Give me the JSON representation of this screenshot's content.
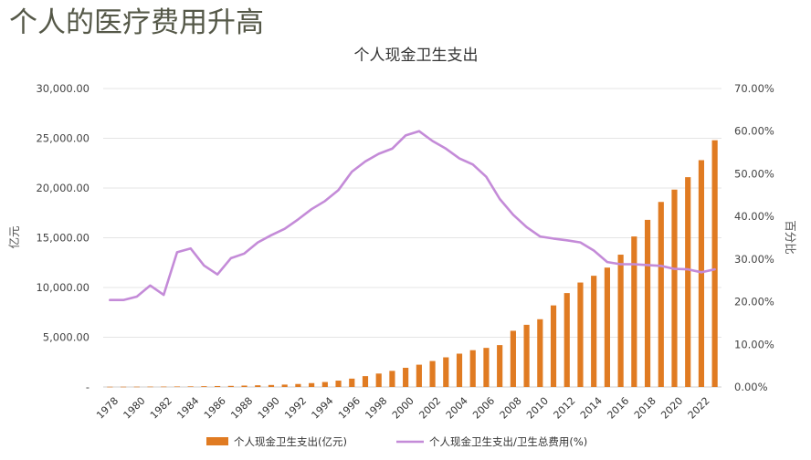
{
  "page": {
    "title": "个人的医疗费用升高"
  },
  "chart_data": {
    "type": "bar",
    "title": "个人现金卫生支出",
    "y_left_label": "亿元",
    "y_right_label": "百分比",
    "y_left_ticks": [
      "-",
      "5,000.00",
      "10,000.00",
      "15,000.00",
      "20,000.00",
      "25,000.00",
      "30,000.00"
    ],
    "y_right_ticks": [
      "0.00%",
      "10.00%",
      "20.00%",
      "30.00%",
      "40.00%",
      "50.00%",
      "60.00%",
      "70.00%"
    ],
    "y_left_lim": [
      0,
      30000
    ],
    "y_right_lim": [
      0,
      70
    ],
    "x_tick_labels": [
      "1978",
      "1980",
      "1982",
      "1984",
      "1986",
      "1988",
      "1990",
      "1992",
      "1994",
      "1996",
      "1998",
      "2000",
      "2002",
      "2004",
      "2006",
      "2008",
      "2010",
      "2012",
      "2014",
      "2016",
      "2018",
      "2020",
      "2022"
    ],
    "grid": true,
    "legend_position": "bottom",
    "x": [
      1978,
      1979,
      1980,
      1981,
      1982,
      1983,
      1984,
      1985,
      1986,
      1987,
      1988,
      1989,
      1990,
      1991,
      1992,
      1993,
      1994,
      1995,
      1996,
      1997,
      1998,
      1999,
      2000,
      2001,
      2002,
      2003,
      2004,
      2005,
      2006,
      2007,
      2008,
      2009,
      2010,
      2011,
      2012,
      2013,
      2014,
      2015,
      2016,
      2017,
      2018,
      2019,
      2020,
      2021,
      2022,
      2023
    ],
    "series": [
      {
        "name": "个人现金卫生支出(亿元)",
        "type": "bar",
        "axis": "left",
        "color": "#E07B22",
        "values": [
          23,
          26,
          30,
          36,
          40,
          50,
          60,
          80,
          95,
          110,
          140,
          170,
          200,
          240,
          300,
          390,
          500,
          640,
          840,
          1090,
          1350,
          1620,
          1930,
          2240,
          2610,
          2980,
          3350,
          3700,
          3930,
          4210,
          5650,
          6250,
          6810,
          8200,
          9440,
          10500,
          11180,
          12000,
          13300,
          15130,
          16800,
          18600,
          19840,
          21090,
          22800,
          24800
        ]
      },
      {
        "name": "个人现金卫生支出/卫生总费用(%)",
        "type": "line",
        "axis": "right",
        "color": "#C48BD8",
        "values": [
          20.4,
          20.4,
          21.2,
          23.8,
          21.6,
          31.6,
          32.5,
          28.5,
          26.4,
          30.2,
          31.3,
          33.9,
          35.6,
          37.1,
          39.3,
          41.7,
          43.6,
          46.2,
          50.5,
          52.9,
          54.7,
          55.9,
          59.0,
          60.0,
          57.7,
          55.9,
          53.6,
          52.2,
          49.3,
          44.1,
          40.4,
          37.5,
          35.3,
          34.8,
          34.4,
          33.9,
          32.0,
          29.3,
          28.8,
          28.8,
          28.6,
          28.4,
          27.7,
          27.6,
          26.9,
          27.6
        ]
      }
    ]
  }
}
